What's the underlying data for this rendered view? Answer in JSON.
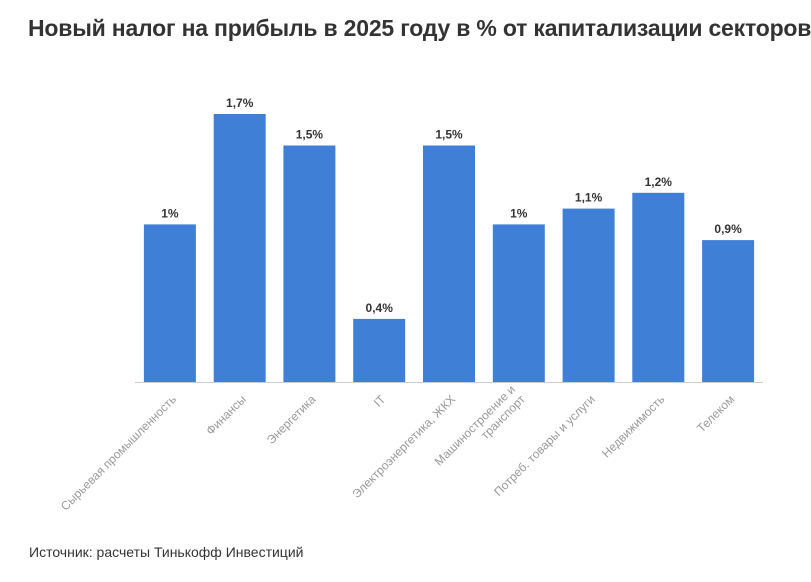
{
  "title": "Новый налог на прибыль в 2025 году в % от капитализации секторов",
  "source": "Источник: расчеты Тинькофф Инвестиций",
  "chart_data": {
    "type": "bar",
    "categories": [
      [
        "Сырьевая промышленность"
      ],
      [
        "Финансы"
      ],
      [
        "Энергетика"
      ],
      [
        "IT"
      ],
      [
        "Электроэнергетика, ЖКХ"
      ],
      [
        "Машиностроение и",
        "транспорт"
      ],
      [
        "Потреб. товары и услуги"
      ],
      [
        "Недвижимость"
      ],
      [
        "Телеком"
      ]
    ],
    "values": [
      1.0,
      1.7,
      1.5,
      0.4,
      1.5,
      1.0,
      1.1,
      1.2,
      0.9
    ],
    "data_labels": [
      "1%",
      "1,7%",
      "1,5%",
      "0,4%",
      "1,5%",
      "1%",
      "1,1%",
      "1,2%",
      "0,9%"
    ],
    "title": "Новый налог на прибыль в 2025 году в % от капитализации секторов",
    "xlabel": "",
    "ylabel": "",
    "ylim": [
      0,
      1.7
    ],
    "grid": false,
    "bar_color": "#3f80d6",
    "axis_color": "#cccccc",
    "label_color": "#999999",
    "value_label_color": "#333333"
  }
}
